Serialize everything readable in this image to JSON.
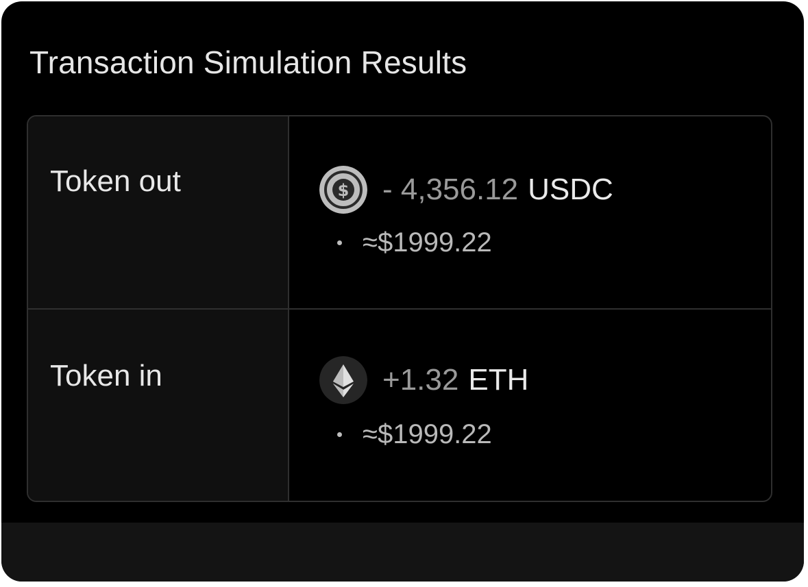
{
  "title": "Transaction Simulation Results",
  "rows": [
    {
      "label": "Token out",
      "icon": "usdc-icon",
      "amount": "- 4,356.12",
      "symbol": "USDC",
      "usd_value": "≈$1999.22"
    },
    {
      "label": "Token in",
      "icon": "eth-icon",
      "amount": "+1.32",
      "symbol": "ETH",
      "usd_value": "≈$1999.22"
    }
  ],
  "colors": {
    "background": "#000000",
    "label_cell": "#101010",
    "border": "#2f2f2f",
    "amount_text": "#9a9a9a",
    "symbol_text": "#eaeaea"
  }
}
